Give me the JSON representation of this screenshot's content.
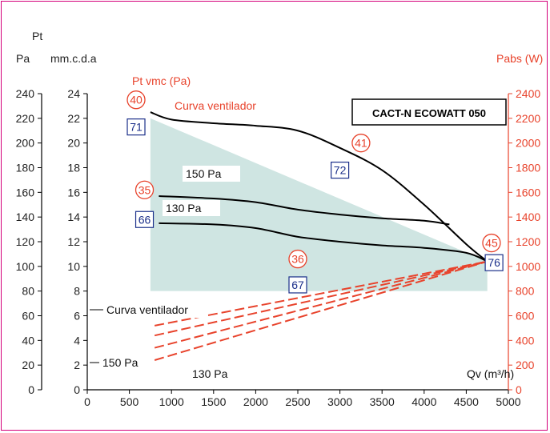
{
  "chart_data": {
    "type": "line",
    "title": "CACT-N ECOWATT 050",
    "xlabel": "Qv (m³/h)",
    "xlim": [
      0,
      5000
    ],
    "x_ticks": [
      "0",
      "500",
      "1000",
      "1500",
      "2000",
      "2500",
      "3000",
      "3500",
      "4000",
      "4500",
      "5000"
    ],
    "ylabel_top": "Pt",
    "ylabel_pa": "Pa",
    "ylabel_mmcda": "mm.c.d.a",
    "ylabel_right": "Pabs (W)",
    "ylabel_vmc": "Pt vmc (Pa)",
    "y_pa_ticks": [
      "0",
      "20",
      "40",
      "60",
      "80",
      "100",
      "120",
      "140",
      "160",
      "180",
      "200",
      "220",
      "240"
    ],
    "y_mm_ticks": [
      "0",
      "2",
      "4",
      "6",
      "8",
      "10",
      "12",
      "14",
      "16",
      "18",
      "20",
      "22",
      "24"
    ],
    "y_w_ticks": [
      "0",
      "200",
      "400",
      "600",
      "800",
      "1000",
      "1200",
      "1400",
      "1600",
      "1800",
      "2000",
      "2200",
      "2400"
    ],
    "ylim_pa": [
      0,
      240
    ],
    "ylim_w": [
      0,
      2400
    ],
    "grid": false,
    "shaded_region": {
      "label": "Curva ventilador",
      "x": [
        750,
        750,
        4750,
        4750
      ],
      "y_pa": [
        80,
        220,
        104,
        80
      ]
    },
    "pressure_curves": [
      {
        "label": "Curva ventilador",
        "points": [
          [
            750,
            225
          ],
          [
            1000,
            219
          ],
          [
            1500,
            216
          ],
          [
            2000,
            214
          ],
          [
            2500,
            210
          ],
          [
            3000,
            196
          ],
          [
            3500,
            178
          ],
          [
            4000,
            150
          ],
          [
            4500,
            118
          ],
          [
            4750,
            104
          ]
        ]
      },
      {
        "label": "150 Pa",
        "points": [
          [
            850,
            157
          ],
          [
            1500,
            155
          ],
          [
            2000,
            152
          ],
          [
            2500,
            146
          ],
          [
            3000,
            142
          ],
          [
            3500,
            139
          ],
          [
            4000,
            137
          ],
          [
            4300,
            134
          ]
        ]
      },
      {
        "label": "130 Pa",
        "points": [
          [
            850,
            135
          ],
          [
            1500,
            134
          ],
          [
            2000,
            131
          ],
          [
            2500,
            124
          ],
          [
            3000,
            120
          ],
          [
            3500,
            117
          ],
          [
            4000,
            115
          ],
          [
            4500,
            111
          ],
          [
            4750,
            104
          ]
        ]
      }
    ],
    "power_curves": [
      {
        "label": "Curva ventilador",
        "points": [
          [
            800,
            520
          ],
          [
            4750,
            1040
          ]
        ]
      },
      {
        "label": "150 Pa",
        "points": [
          [
            800,
            340
          ],
          [
            4750,
            1040
          ]
        ]
      },
      {
        "label": "130 Pa",
        "points": [
          [
            800,
            240
          ],
          [
            4750,
            1040
          ]
        ]
      },
      {
        "label": "",
        "points": [
          [
            800,
            440
          ],
          [
            4750,
            1040
          ]
        ]
      }
    ],
    "markers_circle": [
      {
        "text": "40",
        "x": 580,
        "y": 235
      },
      {
        "text": "41",
        "x": 3250,
        "y": 200
      },
      {
        "text": "35",
        "x": 680,
        "y": 162
      },
      {
        "text": "36",
        "x": 2500,
        "y": 106
      },
      {
        "text": "45",
        "x": 4800,
        "y": 119
      }
    ],
    "markers_box": [
      {
        "text": "71",
        "x": 580,
        "y": 213
      },
      {
        "text": "72",
        "x": 3000,
        "y": 178
      },
      {
        "text": "66",
        "x": 680,
        "y": 138
      },
      {
        "text": "67",
        "x": 2500,
        "y": 85
      },
      {
        "text": "76",
        "x": 4830,
        "y": 103
      }
    ],
    "left_labels": [
      {
        "text": "Curva ventilador"
      },
      {
        "text": "150 Pa"
      },
      {
        "text": "130 Pa"
      },
      {
        "text": "150 Pa"
      },
      {
        "text": "130 Pa"
      }
    ]
  }
}
